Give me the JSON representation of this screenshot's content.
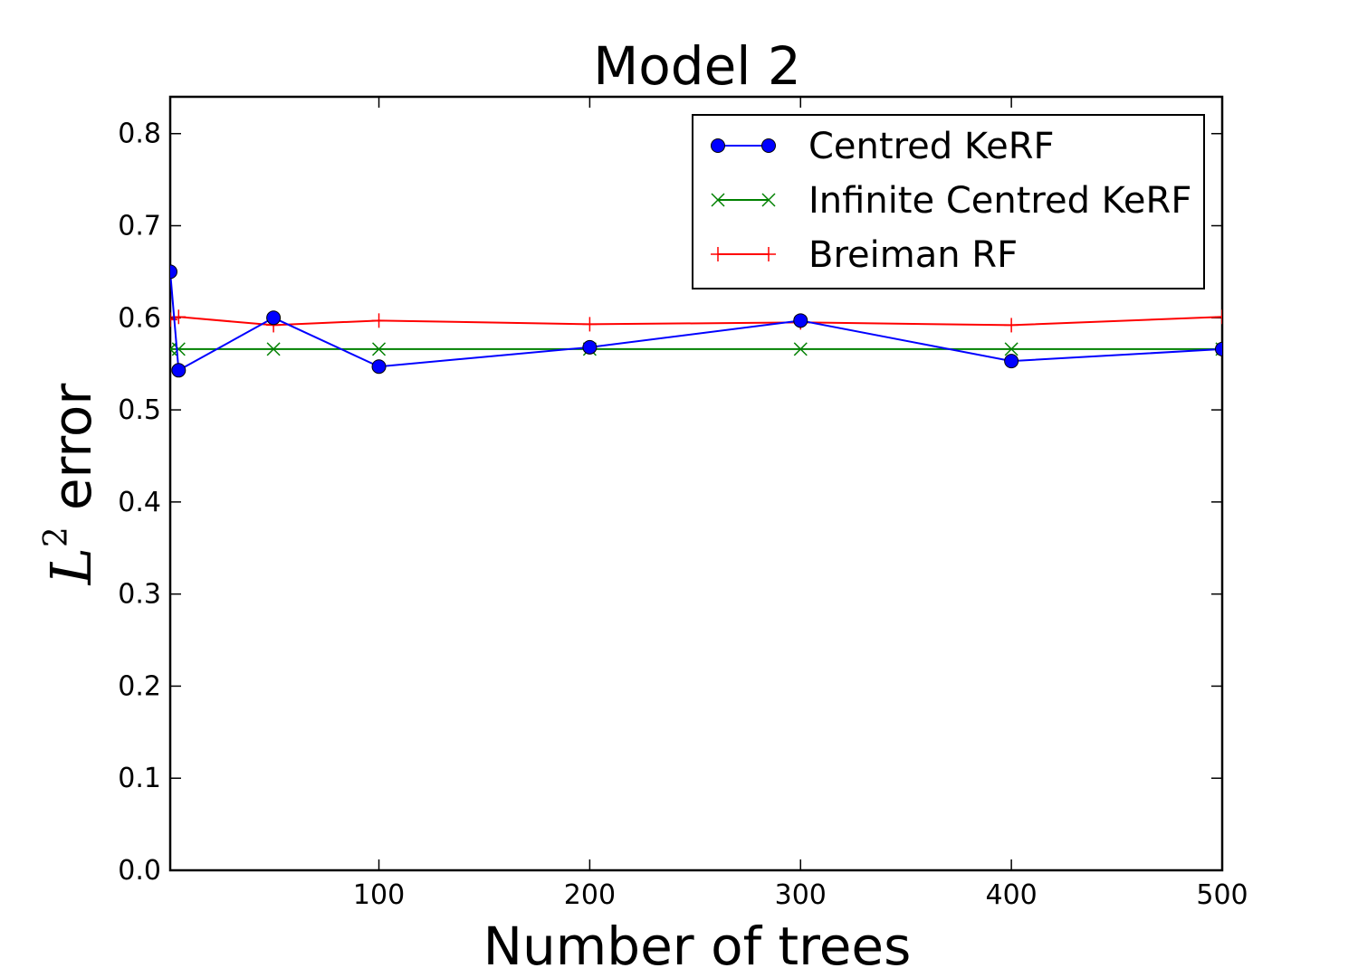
{
  "chart_data": {
    "type": "line",
    "title": "Model 2",
    "xlabel": "Number of trees",
    "ylabel": {
      "symbol": "L",
      "superscript": "2",
      "text": "error"
    },
    "xlim": [
      1,
      500
    ],
    "ylim": [
      0.0,
      0.84
    ],
    "xticks": [
      100,
      200,
      300,
      400,
      500
    ],
    "xtick_labels": [
      "100",
      "200",
      "300",
      "400",
      "500"
    ],
    "yticks": [
      0.0,
      0.1,
      0.2,
      0.3,
      0.4,
      0.5,
      0.6,
      0.7,
      0.8
    ],
    "ytick_labels": [
      "0.0",
      "0.1",
      "0.2",
      "0.3",
      "0.4",
      "0.5",
      "0.6",
      "0.7",
      "0.8"
    ],
    "grid": false,
    "legend_position": "top-right",
    "x": [
      1,
      5,
      50,
      100,
      200,
      300,
      400,
      500
    ],
    "series": [
      {
        "name": "Centred KeRF",
        "color": "#0000ff",
        "marker": "circle",
        "values": [
          0.65,
          0.543,
          0.6,
          0.547,
          0.568,
          0.597,
          0.553,
          0.566
        ]
      },
      {
        "name": "Infinite Centred KeRF",
        "color": "#008000",
        "marker": "x",
        "values": [
          0.566,
          0.566,
          0.566,
          0.566,
          0.566,
          0.566,
          0.566,
          0.566
        ]
      },
      {
        "name": "Breiman RF",
        "color": "#ff0000",
        "marker": "plus",
        "values": [
          0.598,
          0.601,
          0.592,
          0.597,
          0.593,
          0.595,
          0.592,
          0.601
        ]
      }
    ]
  }
}
